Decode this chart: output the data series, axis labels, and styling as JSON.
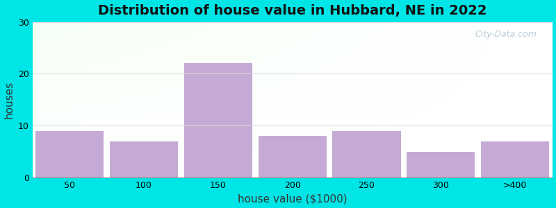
{
  "title": "Distribution of house value in Hubbard, NE in 2022",
  "xlabel": "house value ($1000)",
  "ylabel": "houses",
  "categories": [
    "50",
    "100",
    "150",
    "200",
    "250",
    "300",
    ">400"
  ],
  "values": [
    9,
    7,
    22,
    8,
    9,
    5,
    7
  ],
  "bar_color": "#c4aad4",
  "ylim": [
    0,
    30
  ],
  "yticks": [
    0,
    10,
    20,
    30
  ],
  "background_color": "#00e5e5",
  "grid_color": "#dddddd",
  "title_fontsize": 14,
  "axis_label_fontsize": 11,
  "tick_fontsize": 9,
  "watermark": "City-Data.com"
}
